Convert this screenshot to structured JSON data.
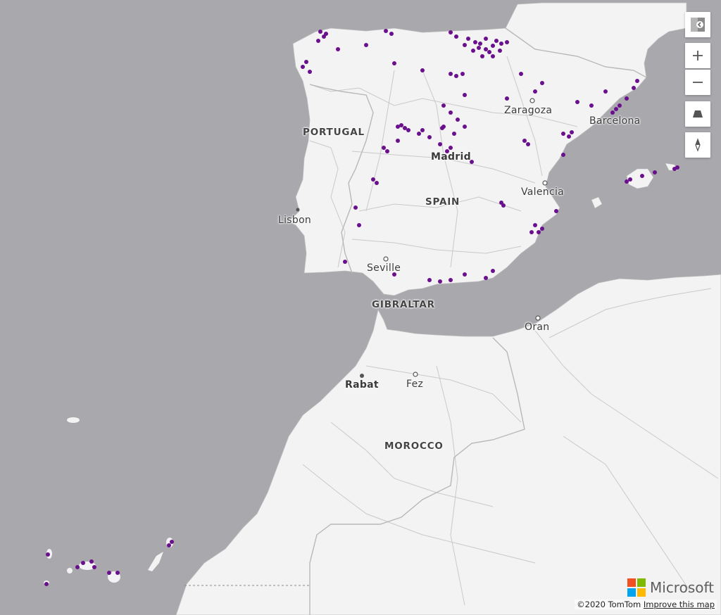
{
  "map": {
    "labels": {
      "portugal": "PORTUGAL",
      "spain": "SPAIN",
      "gibraltar": "GIBRALTAR",
      "morocco": "MOROCCO",
      "lisbon": "Lisbon",
      "madrid": "Madrid",
      "zaragoza": "Zaragoza",
      "barcelona": "Barcelona",
      "valencia": "Valencia",
      "seville": "Seville",
      "oran": "Oran",
      "rabat": "Rabat",
      "fez": "Fez"
    },
    "colors": {
      "water": "#a9a8ad",
      "land": "#f3f3f3",
      "marker": "#6a0f8e"
    }
  },
  "controls": {
    "style_picker_icon": "map-style-icon",
    "zoom_in_icon": "plus-icon",
    "zoom_out_icon": "minus-icon",
    "pitch_icon": "pitch-icon",
    "compass_icon": "compass-icon"
  },
  "attribution": {
    "copyright": "©2020 TomTom",
    "improve_link": "Improve this map"
  },
  "branding": {
    "logo_text": "Microsoft"
  }
}
